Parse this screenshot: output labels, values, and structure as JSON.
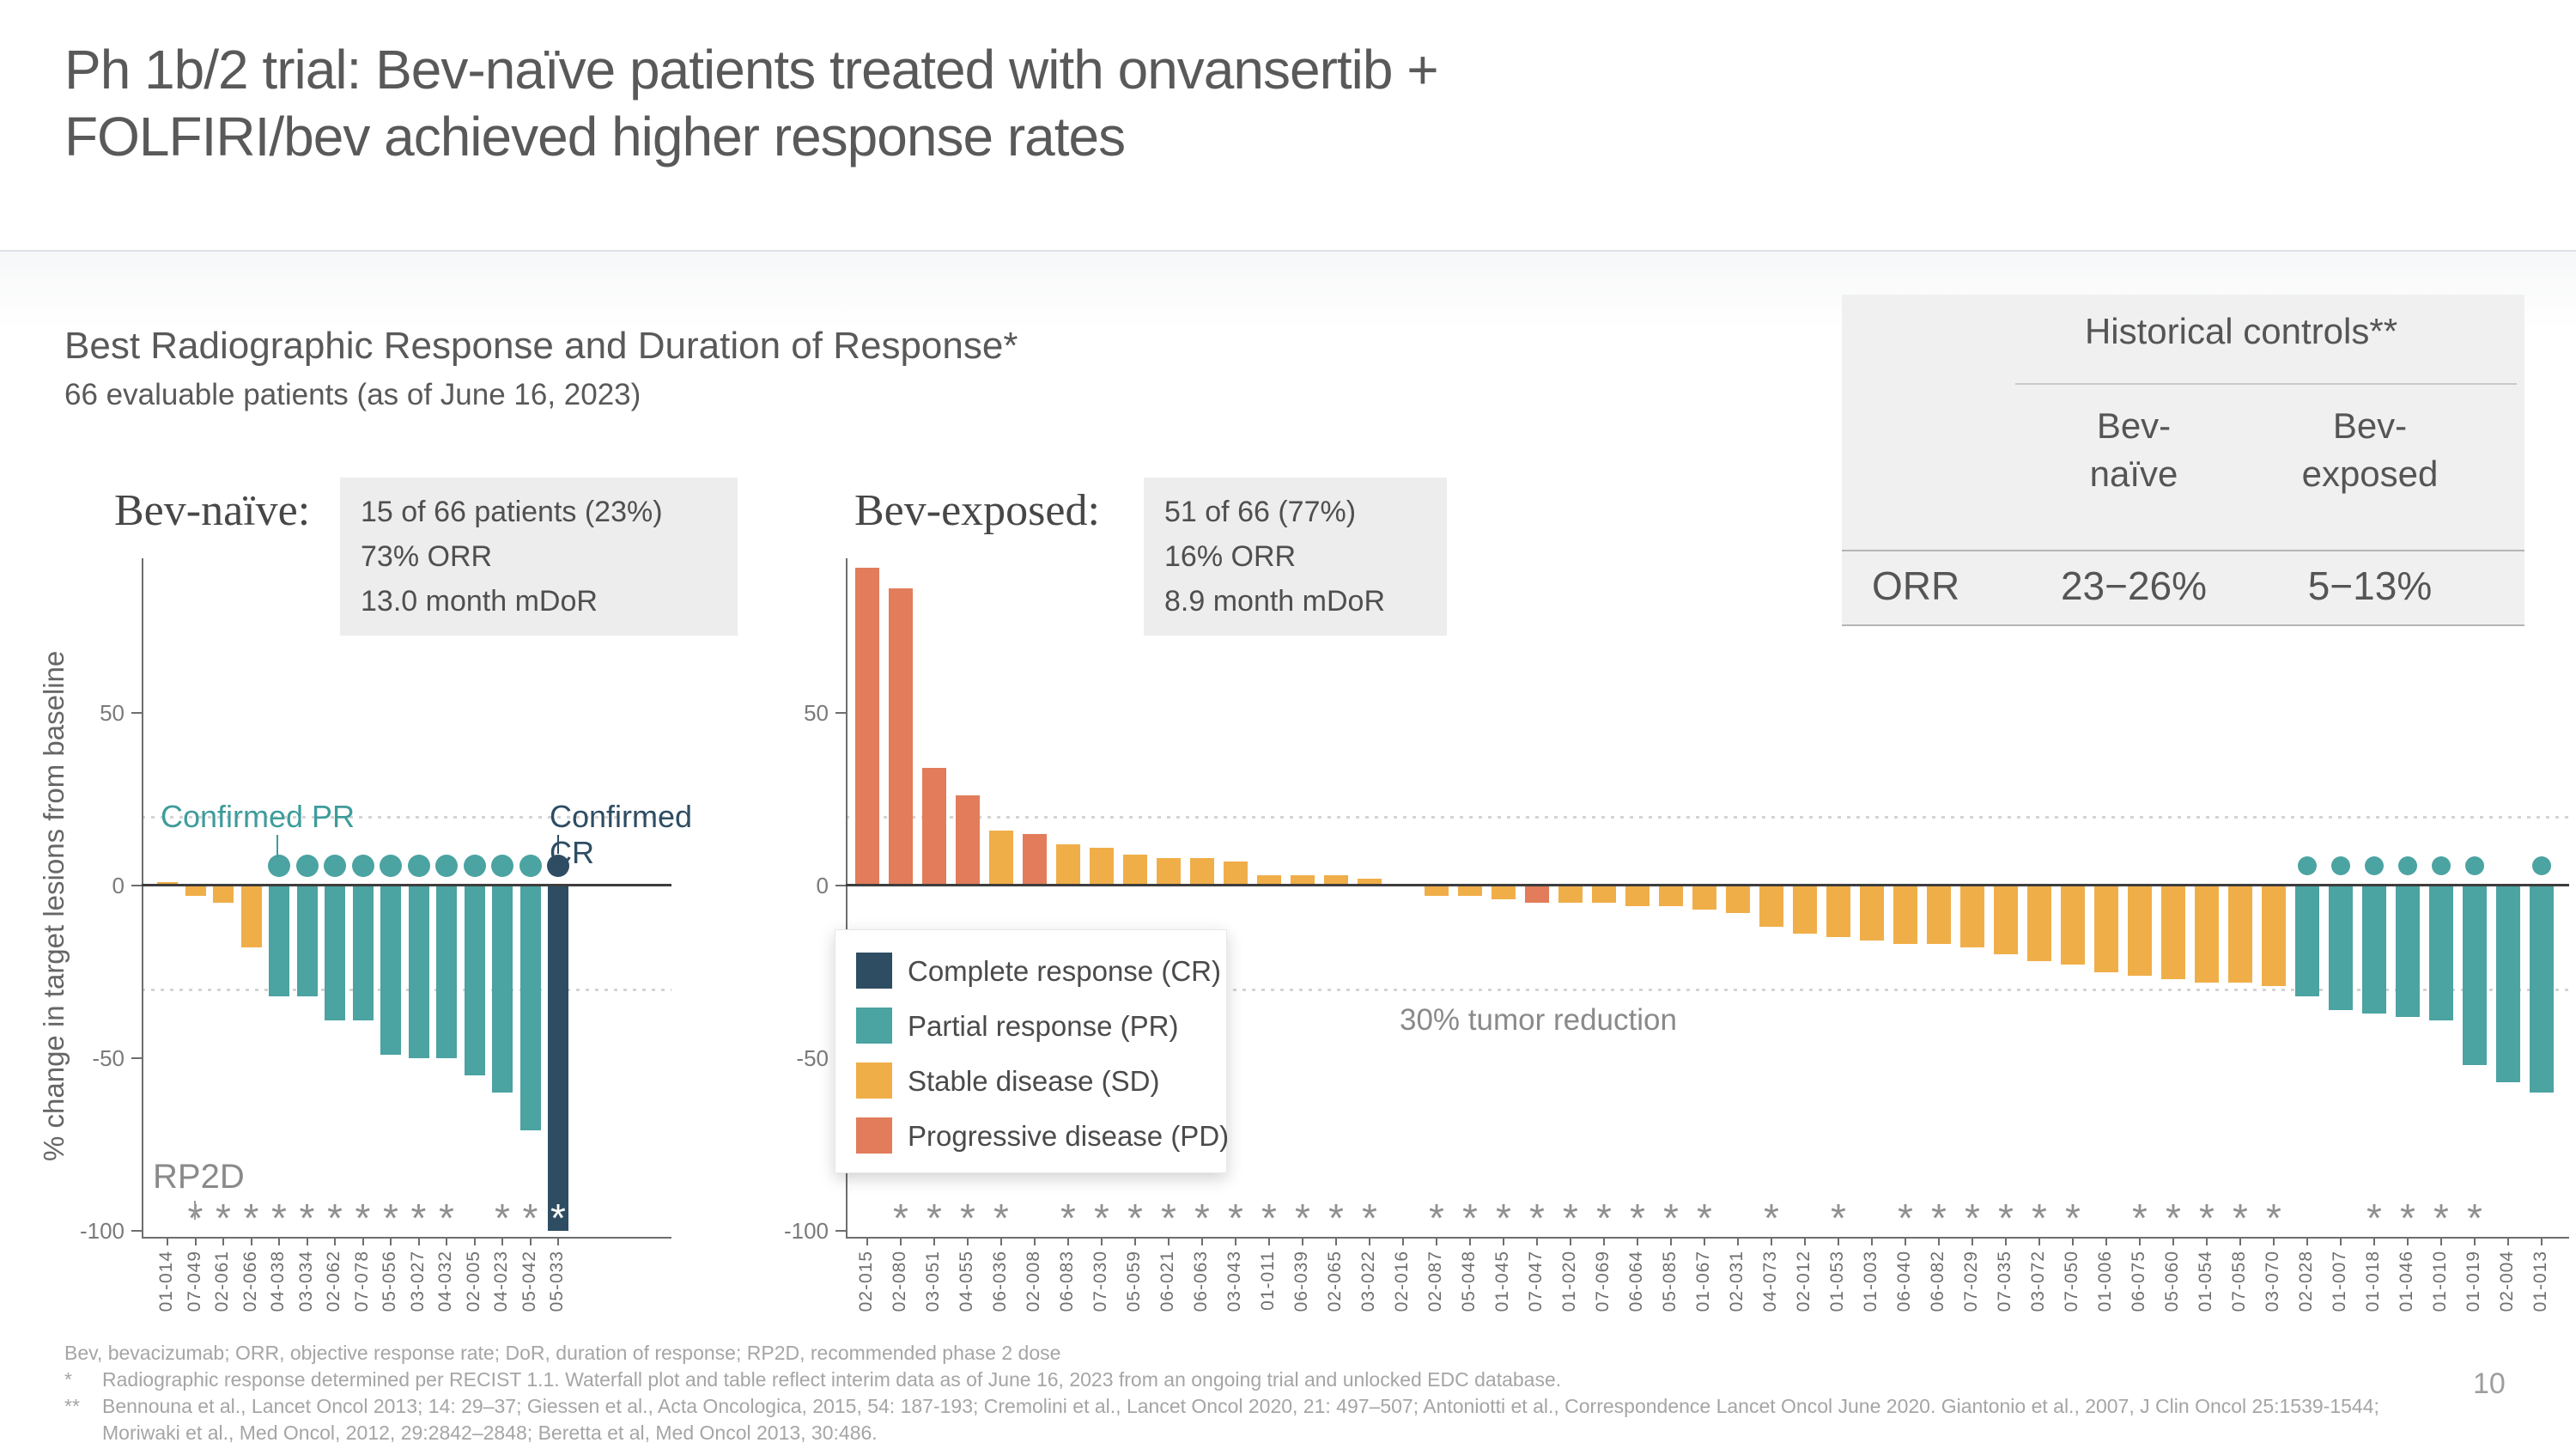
{
  "slide": {
    "title_line1": "Ph 1b/2 trial: Bev-naïve patients treated with onvansertib +",
    "title_line2": "FOLFIRI/bev achieved higher response rates",
    "page_number": "10"
  },
  "section": {
    "heading": "Best Radiographic Response and Duration of Response*",
    "subheading": "66 evaluable patients (as of June 16, 2023)"
  },
  "historical_table": {
    "title": "Historical controls**",
    "columns": [
      {
        "line1": "Bev-",
        "line2": "naïve"
      },
      {
        "line1": "Bev-",
        "line2": "exposed"
      }
    ],
    "row_label": "ORR",
    "row_values": [
      "23−26%",
      "5−13%"
    ]
  },
  "response_colors": {
    "CR": "#2E4D63",
    "PR": "#4BA3A2",
    "SD": "#F0AE49",
    "PD": "#E27C5B"
  },
  "legend": {
    "items": [
      {
        "key": "CR",
        "label": "Complete response (CR)",
        "color": "#2E4D63"
      },
      {
        "key": "PR",
        "label": "Partial response (PR)",
        "color": "#4BA3A2"
      },
      {
        "key": "SD",
        "label": "Stable disease (SD)",
        "color": "#F0AE49"
      },
      {
        "key": "PD",
        "label": "Progressive disease (PD)",
        "color": "#E27C5B"
      }
    ]
  },
  "chart_data": [
    {
      "type": "bar",
      "group_label": "Bev-naïve:",
      "stats_lines": [
        "15 of 66 patients (23%)",
        "73% ORR",
        "13.0 month mDoR"
      ],
      "ylabel": "% change in target lesions from baseline",
      "ylim": [
        -100,
        95
      ],
      "yticks": [
        50,
        0,
        -50,
        -100
      ],
      "reference_lines": [
        20,
        -30
      ],
      "grid": "dotted-thresholds-only",
      "categories": [
        "01-014",
        "07-049",
        "02-061",
        "02-066",
        "04-038",
        "03-034",
        "02-062",
        "07-078",
        "05-056",
        "03-027",
        "04-032",
        "02-005",
        "04-023",
        "05-042",
        "05-033"
      ],
      "values": [
        1,
        -3,
        -5,
        -18,
        -32,
        -32,
        -39,
        -39,
        -49,
        -50,
        -50,
        -55,
        -60,
        -71,
        -100
      ],
      "response": [
        "SD",
        "SD",
        "SD",
        "SD",
        "PR",
        "PR",
        "PR",
        "PR",
        "PR",
        "PR",
        "PR",
        "PR",
        "PR",
        "PR",
        "CR"
      ],
      "confirmed": [
        false,
        false,
        false,
        false,
        true,
        true,
        true,
        true,
        true,
        true,
        true,
        true,
        true,
        true,
        true
      ],
      "asterisk": [
        false,
        true,
        true,
        true,
        true,
        true,
        true,
        true,
        true,
        true,
        true,
        false,
        true,
        true,
        true
      ],
      "annotations": {
        "confirmed_pr": "Confirmed PR",
        "confirmed_cr": "Confirmed CR",
        "rp2d": "RP2D"
      }
    },
    {
      "type": "bar",
      "group_label": "Bev-exposed:",
      "stats_lines": [
        "51 of 66 (77%)",
        "16% ORR",
        "8.9 month mDoR"
      ],
      "ylabel": "",
      "ylim": [
        -100,
        95
      ],
      "yticks": [
        50,
        0,
        -50,
        -100
      ],
      "reference_lines": [
        20,
        -30
      ],
      "grid": "dotted-thresholds-only",
      "categories": [
        "02-015",
        "02-080",
        "03-051",
        "04-055",
        "06-036",
        "02-008",
        "06-083",
        "07-030",
        "05-059",
        "06-021",
        "06-063",
        "03-043",
        "01-011",
        "06-039",
        "02-065",
        "03-022",
        "02-016",
        "02-087",
        "05-048",
        "01-045",
        "07-047",
        "01-020",
        "07-069",
        "06-064",
        "05-085",
        "01-067",
        "02-031",
        "04-073",
        "02-012",
        "01-053",
        "01-003",
        "06-040",
        "06-082",
        "07-029",
        "07-035",
        "03-072",
        "07-050",
        "01-006",
        "06-075",
        "05-060",
        "01-054",
        "07-058",
        "03-070",
        "02-028",
        "01-007",
        "01-018",
        "01-046",
        "01-010",
        "01-019",
        "02-004",
        "01-013"
      ],
      "values": [
        92,
        86,
        34,
        26,
        16,
        15,
        12,
        11,
        9,
        8,
        8,
        7,
        3,
        3,
        3,
        2,
        0,
        -3,
        -3,
        -4,
        -5,
        -5,
        -5,
        -6,
        -6,
        -7,
        -8,
        -12,
        -14,
        -15,
        -16,
        -17,
        -17,
        -18,
        -20,
        -22,
        -23,
        -25,
        -26,
        -27,
        -28,
        -28,
        -29,
        -32,
        -36,
        -37,
        -38,
        -39,
        -52,
        -57,
        -60
      ],
      "response": [
        "PD",
        "PD",
        "PD",
        "PD",
        "SD",
        "PD",
        "SD",
        "SD",
        "SD",
        "SD",
        "SD",
        "SD",
        "SD",
        "SD",
        "SD",
        "SD",
        "SD",
        "SD",
        "SD",
        "SD",
        "PD",
        "SD",
        "SD",
        "SD",
        "SD",
        "SD",
        "SD",
        "SD",
        "SD",
        "SD",
        "SD",
        "SD",
        "SD",
        "SD",
        "SD",
        "SD",
        "SD",
        "SD",
        "SD",
        "SD",
        "SD",
        "SD",
        "SD",
        "PR",
        "PR",
        "PR",
        "PR",
        "PR",
        "PR",
        "PR",
        "PR"
      ],
      "confirmed": [
        false,
        false,
        false,
        false,
        false,
        false,
        false,
        false,
        false,
        false,
        false,
        false,
        false,
        false,
        false,
        false,
        false,
        false,
        false,
        false,
        false,
        false,
        false,
        false,
        false,
        false,
        false,
        false,
        false,
        false,
        false,
        false,
        false,
        false,
        false,
        false,
        false,
        false,
        false,
        false,
        false,
        false,
        false,
        true,
        true,
        true,
        true,
        true,
        true,
        false,
        true
      ],
      "asterisk": [
        false,
        true,
        true,
        true,
        true,
        false,
        true,
        true,
        true,
        true,
        true,
        true,
        true,
        true,
        true,
        true,
        false,
        true,
        true,
        true,
        true,
        true,
        true,
        true,
        true,
        true,
        false,
        true,
        false,
        true,
        false,
        true,
        true,
        true,
        true,
        true,
        true,
        false,
        true,
        true,
        true,
        true,
        true,
        false,
        false,
        true,
        true,
        true,
        true,
        false,
        false
      ],
      "annotations": {
        "tumor_reduction": "30% tumor reduction"
      }
    }
  ],
  "footnotes": {
    "abbrev": "Bev, bevacizumab; ORR, objective response rate; DoR, duration of response; RP2D, recommended phase 2 dose",
    "star1_marker": "*",
    "star1": "Radiographic response determined per RECIST 1.1. Waterfall plot and table reflect interim data as of June 16, 2023 from an ongoing trial and unlocked EDC database.",
    "star2_marker": "**",
    "star2": "Bennouna et al., Lancet Oncol 2013; 14: 29–37; Giessen et al., Acta Oncologica, 2015, 54: 187-193;  Cremolini et al., Lancet Oncol 2020, 21: 497–507; Antoniotti et al., Correspondence Lancet Oncol June 2020. Giantonio et al., 2007, J Clin Oncol 25:1539-1544; Moriwaki et al., Med Oncol, 2012, 29:2842–2848; Beretta et al, Med Oncol 2013, 30:486."
  }
}
